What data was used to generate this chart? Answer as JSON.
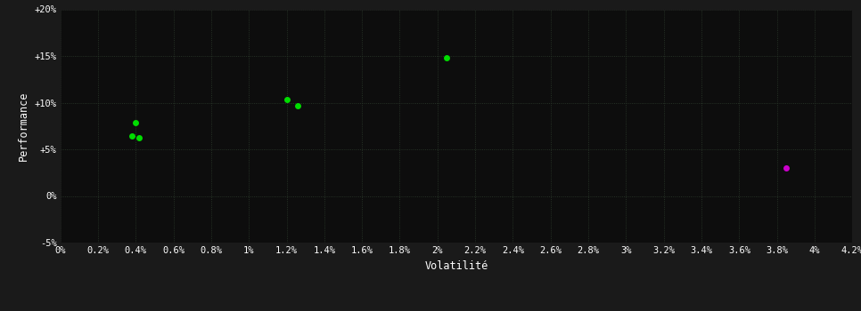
{
  "background_color": "#1a1a1a",
  "plot_bg_color": "#0d0d0d",
  "grid_color": "#2d3d2d",
  "text_color": "#ffffff",
  "xlabel": "Volatilité",
  "ylabel": "Performance",
  "xlim": [
    0.0,
    0.042
  ],
  "ylim": [
    -0.05,
    0.2
  ],
  "xticks": [
    0.0,
    0.002,
    0.004,
    0.006,
    0.008,
    0.01,
    0.012,
    0.014,
    0.016,
    0.018,
    0.02,
    0.022,
    0.024,
    0.026,
    0.028,
    0.03,
    0.032,
    0.034,
    0.036,
    0.038,
    0.04,
    0.042
  ],
  "yticks": [
    -0.05,
    0.0,
    0.05,
    0.1,
    0.15,
    0.2
  ],
  "ytick_labels": [
    "-5%",
    "0%",
    "+5%",
    "+10%",
    "+15%",
    "+20%"
  ],
  "xtick_labels": [
    "0%",
    "0.2%",
    "0.4%",
    "0.6%",
    "0.8%",
    "1%",
    "1.2%",
    "1.4%",
    "1.6%",
    "1.8%",
    "2%",
    "2.2%",
    "2.4%",
    "2.6%",
    "2.8%",
    "3%",
    "3.2%",
    "3.4%",
    "3.6%",
    "3.8%",
    "4%",
    "4.2%"
  ],
  "green_points": [
    [
      0.004,
      0.079
    ],
    [
      0.0038,
      0.064
    ],
    [
      0.0042,
      0.062
    ],
    [
      0.012,
      0.103
    ],
    [
      0.0126,
      0.097
    ],
    [
      0.0205,
      0.148
    ]
  ],
  "magenta_points": [
    [
      0.0385,
      0.03
    ]
  ],
  "green_color": "#00dd00",
  "magenta_color": "#cc00cc",
  "marker_size": 5,
  "font_size_ticks": 7.5,
  "font_size_axis": 8.5
}
